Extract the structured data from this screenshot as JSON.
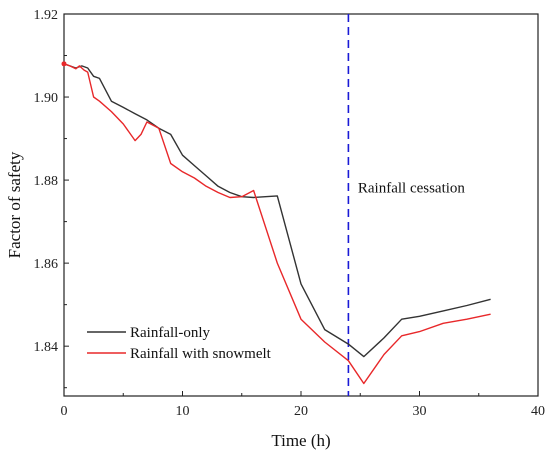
{
  "chart_data": {
    "type": "line",
    "title": "",
    "xlabel": "Time (h)",
    "ylabel": "Factor of safety",
    "xlim": [
      0,
      40
    ],
    "ylim": [
      1.828,
      1.92
    ],
    "xticks": [
      0,
      10,
      20,
      30,
      40
    ],
    "yticks": [
      1.84,
      1.86,
      1.88,
      1.9,
      1.92
    ],
    "ytick_labels": [
      "1.84",
      "1.86",
      "1.88",
      "1.90",
      "1.92"
    ],
    "grid": false,
    "legend_position": "bottom-left",
    "series": [
      {
        "name": "Rainfall-only",
        "color": "#333333",
        "x": [
          0,
          0.5,
          1,
          1.5,
          2,
          2.5,
          3,
          4,
          5,
          6,
          7,
          8,
          9,
          10,
          11,
          12,
          13,
          14,
          15,
          16,
          17,
          18,
          20,
          22,
          24,
          25.3,
          27,
          28.5,
          30,
          32,
          34,
          36
        ],
        "y": [
          1.908,
          1.9075,
          1.907,
          1.9075,
          1.907,
          1.905,
          1.9045,
          1.899,
          1.8975,
          1.896,
          1.8945,
          1.8925,
          1.891,
          1.886,
          1.8835,
          1.881,
          1.8785,
          1.877,
          1.876,
          1.8758,
          1.876,
          1.8762,
          1.855,
          1.844,
          1.8405,
          1.8375,
          1.842,
          1.8465,
          1.8472,
          1.8485,
          1.8498,
          1.8513
        ]
      },
      {
        "name": "Rainfall with snowmelt",
        "color": "#e8282a",
        "x": [
          0,
          0.5,
          1,
          1.3,
          1.7,
          2,
          2.5,
          3,
          4,
          5,
          6,
          6.5,
          7,
          8,
          9,
          10,
          11,
          12,
          13,
          14,
          15,
          16,
          18,
          20,
          22,
          24,
          25.3,
          27,
          28.5,
          30,
          32,
          34,
          36
        ],
        "y": [
          1.908,
          1.9075,
          1.9068,
          1.9075,
          1.9065,
          1.906,
          1.9,
          1.899,
          1.8965,
          1.8935,
          1.8895,
          1.891,
          1.894,
          1.8925,
          1.884,
          1.882,
          1.8805,
          1.8785,
          1.877,
          1.8758,
          1.876,
          1.8775,
          1.86,
          1.8465,
          1.841,
          1.8365,
          1.831,
          1.838,
          1.8425,
          1.8435,
          1.8455,
          1.8465,
          1.8477
        ]
      }
    ],
    "vline": {
      "x": 24,
      "color": "#1a1ad6",
      "style": "dashed"
    },
    "annotation": {
      "text": "Rainfall cessation",
      "x": 24.8,
      "y": 1.877
    }
  }
}
